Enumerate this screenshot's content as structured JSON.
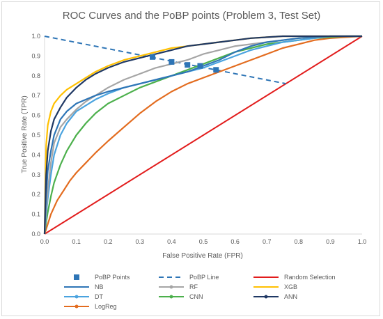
{
  "chart_data": {
    "type": "line",
    "title": "ROC Curves and the PoBP points (Problem 3, Test Set)",
    "xlabel": "False Positive Rate (FPR)",
    "ylabel": "True Positive Rate (TPR)",
    "xlim": [
      0,
      1
    ],
    "ylim": [
      0,
      1
    ],
    "xticks": [
      "0.0",
      "0.1",
      "0.2",
      "0.3",
      "0.4",
      "0.5",
      "0.6",
      "0.7",
      "0.8",
      "0.9",
      "1.0"
    ],
    "yticks": [
      "0.0",
      "0.1",
      "0.2",
      "0.3",
      "0.4",
      "0.5",
      "0.6",
      "0.7",
      "0.8",
      "0.9",
      "1.0"
    ],
    "grid": false,
    "legend_position": "bottom",
    "series": [
      {
        "name": "NB",
        "color": "#2e75b6",
        "x": [
          0,
          0.005,
          0.01,
          0.02,
          0.03,
          0.05,
          0.07,
          0.1,
          0.13,
          0.16,
          0.2,
          0.25,
          0.3,
          0.35,
          0.4,
          0.45,
          0.5,
          0.55,
          0.6,
          0.65,
          0.7,
          0.75,
          0.8,
          0.85,
          0.9,
          0.95,
          1.0
        ],
        "y": [
          0,
          0.2,
          0.32,
          0.42,
          0.5,
          0.58,
          0.62,
          0.66,
          0.68,
          0.7,
          0.72,
          0.74,
          0.76,
          0.78,
          0.8,
          0.82,
          0.85,
          0.88,
          0.92,
          0.95,
          0.97,
          0.98,
          0.99,
          0.995,
          1.0,
          1.0,
          1.0
        ]
      },
      {
        "name": "RF",
        "color": "#a5a5a5",
        "x": [
          0,
          0.005,
          0.01,
          0.02,
          0.03,
          0.05,
          0.07,
          0.1,
          0.13,
          0.16,
          0.2,
          0.25,
          0.3,
          0.35,
          0.4,
          0.45,
          0.5,
          0.55,
          0.6,
          0.65,
          0.7,
          0.75,
          0.8,
          0.85,
          0.9,
          0.95,
          1.0
        ],
        "y": [
          0,
          0.12,
          0.22,
          0.36,
          0.46,
          0.54,
          0.58,
          0.63,
          0.67,
          0.7,
          0.74,
          0.78,
          0.81,
          0.84,
          0.86,
          0.88,
          0.91,
          0.93,
          0.95,
          0.96,
          0.97,
          0.98,
          0.99,
          0.995,
          1.0,
          1.0,
          1.0
        ]
      },
      {
        "name": "XGB",
        "color": "#ffc000",
        "x": [
          0,
          0.003,
          0.005,
          0.01,
          0.02,
          0.03,
          0.05,
          0.07,
          0.1,
          0.13,
          0.16,
          0.2,
          0.25,
          0.3,
          0.35,
          0.4,
          0.45,
          0.5,
          0.55,
          0.6,
          0.65,
          0.7,
          0.75,
          0.8,
          0.85,
          0.9,
          0.95,
          1.0
        ],
        "y": [
          0,
          0.3,
          0.45,
          0.55,
          0.62,
          0.66,
          0.7,
          0.73,
          0.76,
          0.79,
          0.82,
          0.85,
          0.88,
          0.9,
          0.92,
          0.94,
          0.95,
          0.96,
          0.97,
          0.98,
          0.99,
          0.995,
          1.0,
          1.0,
          1.0,
          1.0,
          1.0,
          1.0
        ]
      },
      {
        "name": "DT",
        "color": "#4aa3df",
        "x": [
          0,
          0.005,
          0.01,
          0.02,
          0.03,
          0.05,
          0.07,
          0.1,
          0.13,
          0.16,
          0.2,
          0.25,
          0.3,
          0.35,
          0.4,
          0.45,
          0.5,
          0.55,
          0.6,
          0.65,
          0.7,
          0.75,
          0.8,
          0.85,
          0.9,
          0.95,
          1.0
        ],
        "y": [
          0,
          0.1,
          0.18,
          0.3,
          0.4,
          0.5,
          0.56,
          0.62,
          0.65,
          0.68,
          0.71,
          0.74,
          0.76,
          0.78,
          0.8,
          0.82,
          0.84,
          0.87,
          0.9,
          0.93,
          0.95,
          0.97,
          0.98,
          0.99,
          1.0,
          1.0,
          1.0
        ]
      },
      {
        "name": "CNN",
        "color": "#4cb04c",
        "x": [
          0,
          0.005,
          0.01,
          0.02,
          0.03,
          0.05,
          0.07,
          0.1,
          0.13,
          0.16,
          0.2,
          0.25,
          0.3,
          0.35,
          0.4,
          0.45,
          0.5,
          0.55,
          0.6,
          0.65,
          0.7,
          0.75,
          0.8,
          0.85,
          0.9,
          0.95,
          1.0
        ],
        "y": [
          0,
          0.06,
          0.11,
          0.19,
          0.26,
          0.35,
          0.42,
          0.5,
          0.56,
          0.61,
          0.66,
          0.7,
          0.74,
          0.77,
          0.8,
          0.83,
          0.86,
          0.89,
          0.92,
          0.94,
          0.96,
          0.97,
          0.98,
          0.99,
          0.995,
          1.0,
          1.0
        ]
      },
      {
        "name": "ANN",
        "color": "#1f3864",
        "x": [
          0,
          0.003,
          0.005,
          0.01,
          0.02,
          0.03,
          0.05,
          0.07,
          0.1,
          0.13,
          0.16,
          0.2,
          0.25,
          0.3,
          0.35,
          0.4,
          0.45,
          0.5,
          0.55,
          0.6,
          0.65,
          0.7,
          0.75,
          0.8,
          0.85,
          0.9,
          0.95,
          1.0
        ],
        "y": [
          0,
          0.2,
          0.3,
          0.42,
          0.52,
          0.58,
          0.64,
          0.69,
          0.74,
          0.78,
          0.81,
          0.84,
          0.87,
          0.89,
          0.91,
          0.93,
          0.95,
          0.96,
          0.97,
          0.98,
          0.99,
          0.995,
          1.0,
          1.0,
          1.0,
          1.0,
          1.0,
          1.0
        ]
      },
      {
        "name": "LogReg",
        "color": "#e36c1f",
        "x": [
          0,
          0.01,
          0.02,
          0.04,
          0.06,
          0.08,
          0.1,
          0.13,
          0.16,
          0.2,
          0.25,
          0.3,
          0.35,
          0.4,
          0.45,
          0.5,
          0.55,
          0.6,
          0.65,
          0.7,
          0.75,
          0.8,
          0.85,
          0.9,
          0.95,
          1.0
        ],
        "y": [
          0,
          0.05,
          0.1,
          0.17,
          0.22,
          0.27,
          0.31,
          0.36,
          0.41,
          0.47,
          0.54,
          0.61,
          0.67,
          0.72,
          0.76,
          0.79,
          0.82,
          0.85,
          0.88,
          0.91,
          0.94,
          0.96,
          0.98,
          0.99,
          0.995,
          1.0
        ]
      }
    ],
    "random_selection": {
      "name": "Random Selection",
      "color": "#e21c1c",
      "x": [
        0,
        1
      ],
      "y": [
        0,
        1
      ]
    },
    "pobp_line": {
      "name": "PoBP Line",
      "color": "#2e75b6",
      "x": [
        0,
        0.76
      ],
      "y": [
        1.0,
        0.76
      ]
    },
    "pobp_points": {
      "name": "PoBP Points",
      "color": "#2e75b6",
      "x": [
        0.34,
        0.4,
        0.45,
        0.49,
        0.54
      ],
      "y": [
        0.895,
        0.87,
        0.855,
        0.85,
        0.83
      ]
    },
    "legend": [
      [
        "PoBP Points",
        "PoBP Line",
        "Random Selection"
      ],
      [
        "NB",
        "RF",
        "XGB"
      ],
      [
        "DT",
        "CNN",
        "ANN"
      ],
      [
        "LogReg"
      ]
    ]
  }
}
